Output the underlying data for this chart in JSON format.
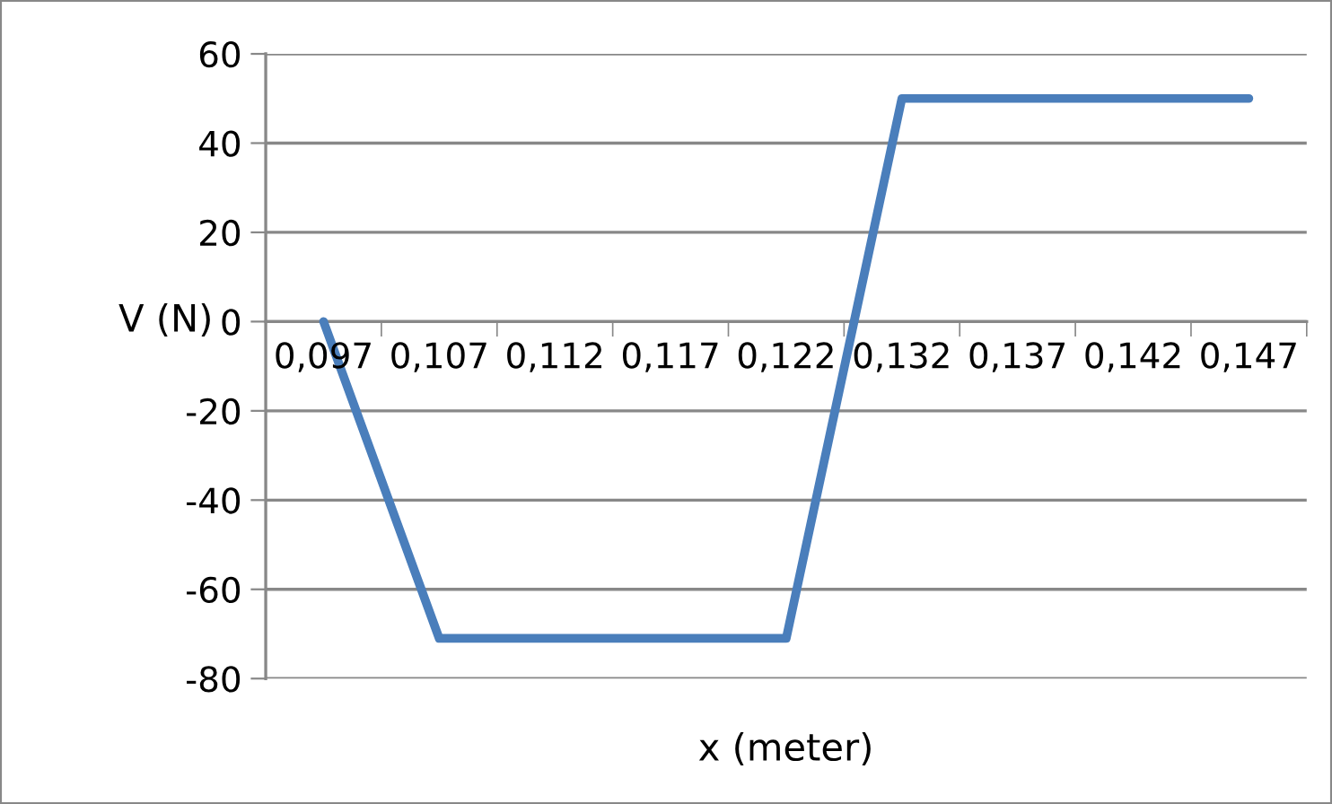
{
  "chart_data": {
    "type": "line",
    "xlabel": "x (meter)",
    "ylabel": "V (N)",
    "categories": [
      "0,097",
      "0,107",
      "0,112",
      "0,117",
      "0,122",
      "0,132",
      "0,137",
      "0,142",
      "0,147"
    ],
    "series": [
      {
        "color": "#4a7ebb",
        "values": [
          0,
          -71,
          -71,
          -71,
          -71,
          50,
          50,
          50,
          50
        ]
      }
    ],
    "ylim": [
      -80,
      60
    ],
    "yticks": [
      -80,
      -60,
      -40,
      -20,
      0,
      20,
      40,
      60
    ],
    "grid": "y",
    "marker": "none",
    "line_style": "solid",
    "legend": false
  }
}
